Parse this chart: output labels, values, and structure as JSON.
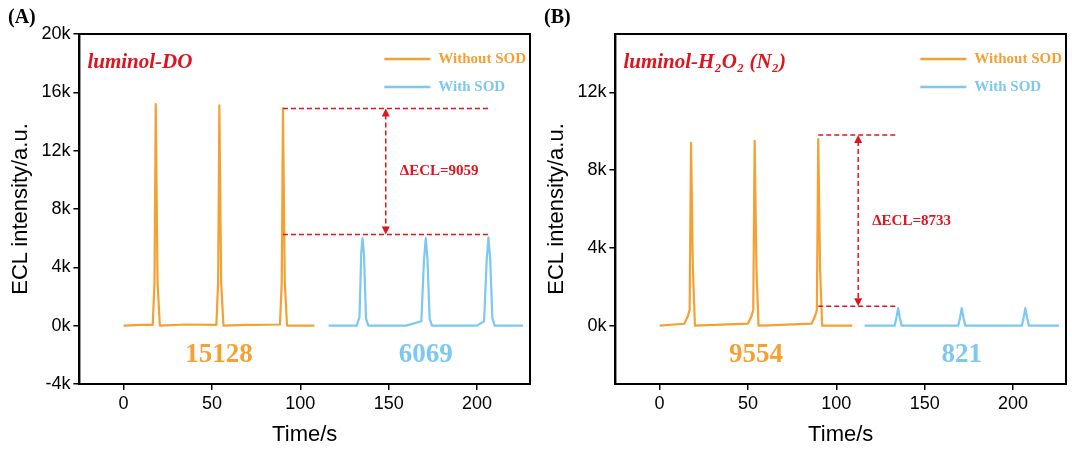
{
  "chart_data": [
    {
      "type": "line",
      "subtitle": "(A)",
      "title": "luminol-DO",
      "xlabel": "Time/s",
      "ylabel": "ECL intensity/a.u.",
      "xlim": [
        -25,
        230
      ],
      "xticks": [
        0,
        50,
        100,
        150,
        200
      ],
      "ylim": [
        -4000,
        20000
      ],
      "yticks": [
        {
          "value": -4000,
          "label": "-4k"
        },
        {
          "value": 0,
          "label": "0k"
        },
        {
          "value": 4000,
          "label": "4k"
        },
        {
          "value": 8000,
          "label": "8k"
        },
        {
          "value": 12000,
          "label": "12k"
        },
        {
          "value": 16000,
          "label": "16k"
        },
        {
          "value": 20000,
          "label": "20k"
        }
      ],
      "grid": false,
      "legend": "top right",
      "marker": "none",
      "line_style": "solid",
      "series": [
        {
          "name": "Without SOD",
          "color": "#f5a033",
          "x": [
            0,
            10,
            16.5,
            17.5,
            18.2,
            19.2,
            20.5,
            35,
            52.5,
            53.5,
            54.2,
            55.2,
            56.5,
            70,
            88.5,
            89.5,
            90.2,
            91.2,
            92.5,
            108
          ],
          "values": [
            0,
            50,
            50,
            3000,
            15200,
            3000,
            0,
            80,
            50,
            3000,
            15100,
            3000,
            0,
            50,
            80,
            3000,
            14900,
            3000,
            0,
            0
          ]
        },
        {
          "name": "With SOD",
          "color": "#7cc8f0",
          "x": [
            116,
            132,
            133.5,
            134.5,
            135.2,
            136,
            137.2,
            138.5,
            160,
            168.5,
            170,
            171,
            172,
            173.2,
            174.5,
            200,
            204,
            205.5,
            206.5,
            207.5,
            208.7,
            210,
            226
          ],
          "values": [
            0,
            0,
            600,
            5000,
            6000,
            5000,
            500,
            0,
            0,
            300,
            4500,
            6000,
            4500,
            500,
            0,
            0,
            300,
            4500,
            6050,
            4500,
            500,
            0,
            0
          ]
        }
      ],
      "ref_lines": [
        {
          "axis": "y",
          "value": 14900,
          "color": "#e0141e",
          "line_style": "dashed"
        },
        {
          "axis": "y",
          "value": 6250,
          "color": "#e0141e",
          "line_style": "dashed"
        }
      ],
      "annotations": [
        "15128",
        "6069",
        "ΔECL=9059"
      ]
    },
    {
      "type": "line",
      "subtitle": "(B)",
      "title": "luminol-H₂O₂ (N₂)",
      "xlabel": "Time/s",
      "ylabel": "ECL intensity/a.u.",
      "xlim": [
        -25,
        230
      ],
      "xticks": [
        0,
        50,
        100,
        150,
        200
      ],
      "ylim": [
        -3000,
        15000
      ],
      "yticks": [
        {
          "value": 0,
          "label": "0k"
        },
        {
          "value": 4000,
          "label": "4k"
        },
        {
          "value": 8000,
          "label": "8k"
        },
        {
          "value": 12000,
          "label": "12k"
        }
      ],
      "grid": false,
      "legend": "top right",
      "marker": "none",
      "line_style": "solid",
      "series": [
        {
          "name": "Without SOD",
          "color": "#f5a033",
          "x": [
            0,
            14,
            16,
            17,
            17.8,
            18.8,
            20,
            50,
            52,
            53,
            53.8,
            54.8,
            56,
            86,
            88,
            89,
            89.8,
            90.8,
            92,
            109
          ],
          "values": [
            0,
            100,
            500,
            800,
            9400,
            3000,
            0,
            100,
            500,
            800,
            9500,
            3000,
            0,
            100,
            500,
            800,
            9600,
            3000,
            0,
            0
          ]
        },
        {
          "name": "With SOD",
          "color": "#7cc8f0",
          "x": [
            116,
            133,
            134,
            135,
            136,
            137,
            169,
            170,
            171,
            172,
            173,
            205,
            206,
            207,
            208,
            209,
            226
          ],
          "values": [
            0,
            0,
            400,
            900,
            400,
            0,
            0,
            400,
            900,
            400,
            0,
            0,
            400,
            900,
            400,
            0,
            0
          ]
        }
      ],
      "ref_lines": [
        {
          "axis": "y",
          "value": 9800,
          "color": "#e0141e",
          "line_style": "dashed"
        },
        {
          "axis": "y",
          "value": 1000,
          "color": "#e0141e",
          "line_style": "dashed"
        }
      ],
      "annotations": [
        "9554",
        "821",
        "ΔECL=8733"
      ]
    }
  ]
}
